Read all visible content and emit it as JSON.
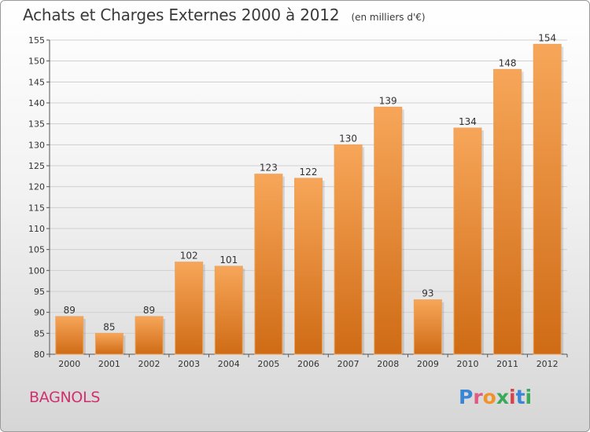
{
  "header": {
    "title": "Achats et Charges Externes 2000 à 2012",
    "unit": "(en milliers d'€)"
  },
  "footer": {
    "commune": "BAGNOLS",
    "logo": "Proxiti"
  },
  "colors": {
    "bar_light": "#f7a659",
    "bar_dark": "#cf6b15",
    "commune": "#d0306e"
  },
  "chart_data": {
    "type": "bar",
    "title": "Achats et Charges Externes 2000 à 2012",
    "subtitle": "(en milliers d'€)",
    "categories": [
      "2000",
      "2001",
      "2002",
      "2003",
      "2004",
      "2005",
      "2006",
      "2007",
      "2008",
      "2009",
      "2010",
      "2011",
      "2012"
    ],
    "values": [
      89,
      85,
      89,
      102,
      101,
      123,
      122,
      130,
      139,
      93,
      134,
      148,
      154
    ],
    "ylim": [
      80,
      155
    ],
    "yticks": [
      80,
      85,
      90,
      95,
      100,
      105,
      110,
      115,
      120,
      125,
      130,
      135,
      140,
      145,
      150,
      155
    ],
    "grid": true,
    "xlabel": "",
    "ylabel": ""
  }
}
